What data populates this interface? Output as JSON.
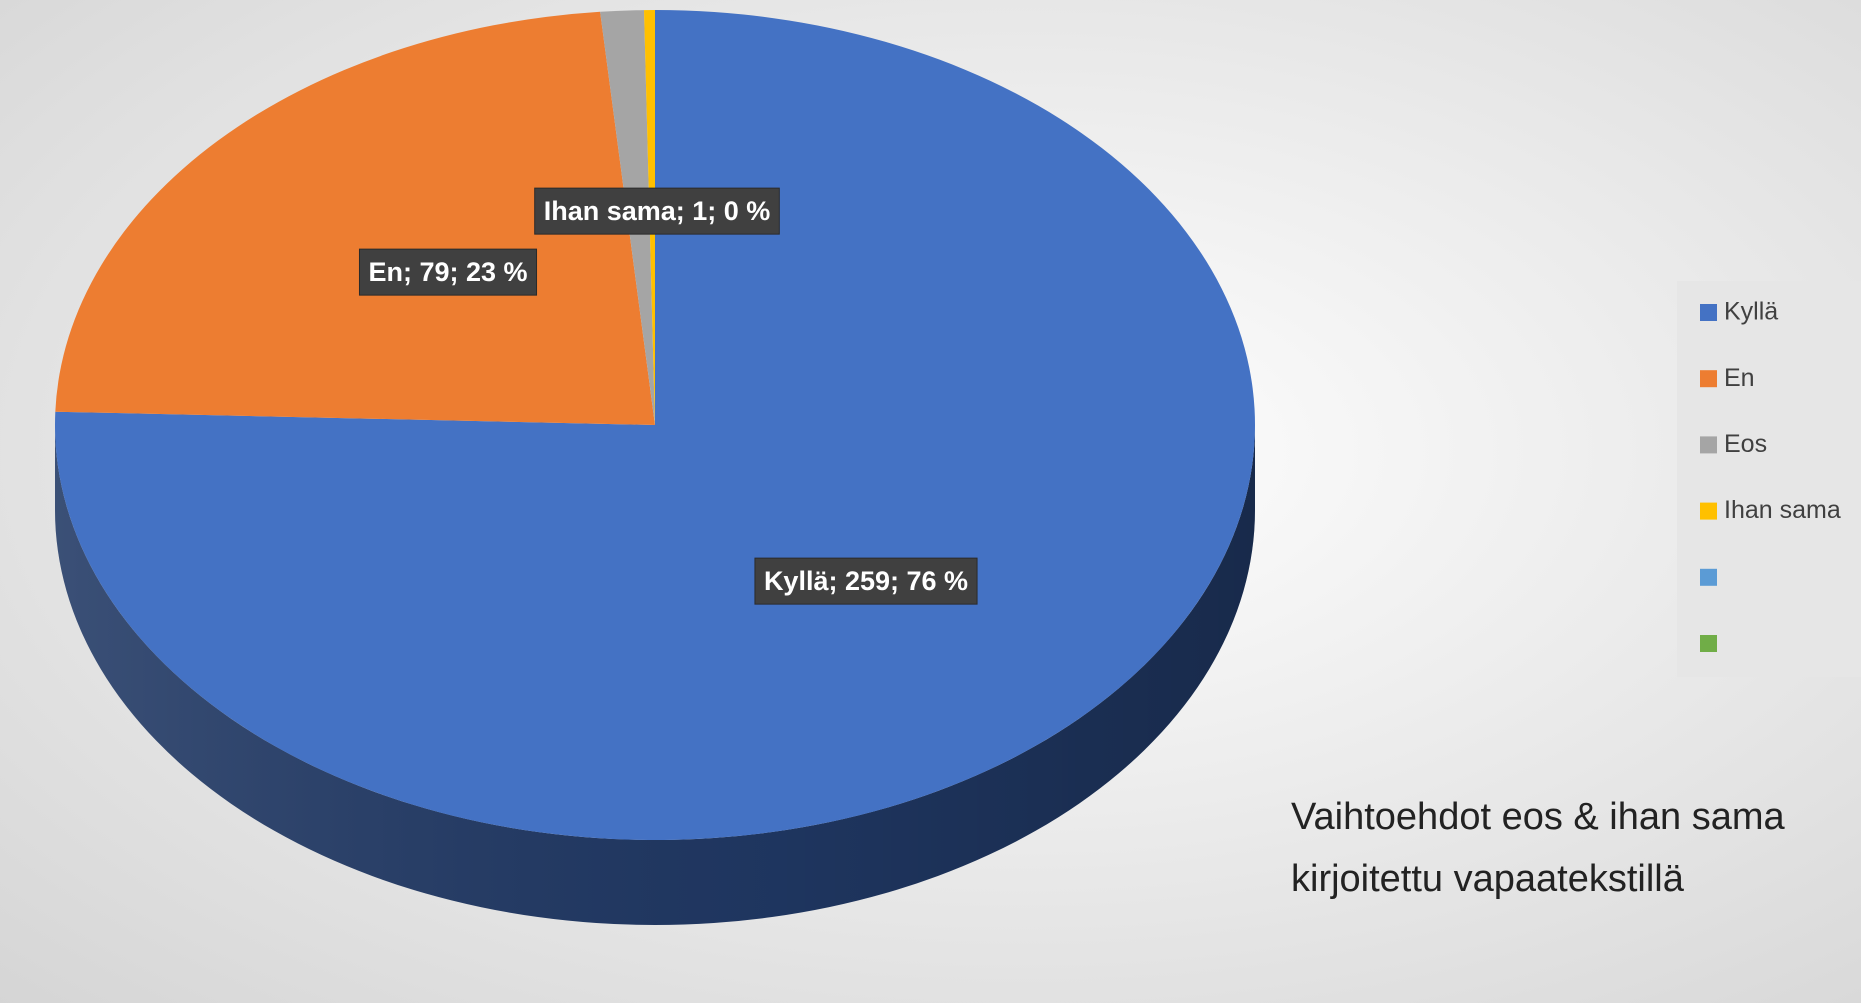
{
  "chart_data": {
    "type": "pie",
    "categories": [
      "Kyllä",
      "En",
      "Eos",
      "Ihan sama",
      null,
      null
    ],
    "values": [
      259,
      79,
      4,
      1,
      0,
      0
    ],
    "value_labels": [
      "Kyllä; 259; 76 %",
      "En; 79; 23 %",
      null,
      "Ihan sama; 1; 0 %",
      null,
      null
    ],
    "colors": [
      "#4472c4",
      "#ed7d31",
      "#a5a5a5",
      "#ffc000",
      "#5b9bd5",
      "#70ad47"
    ],
    "side_colors": [
      "#203864",
      "#9c4a15",
      "#6b6b6b",
      "#a67c00",
      "#2e6da4",
      "#43702a"
    ],
    "legend": "right",
    "annotation": [
      "Vaihtoehdot eos & ihan sama",
      "kirjoitettu vapaatekstillä"
    ]
  }
}
